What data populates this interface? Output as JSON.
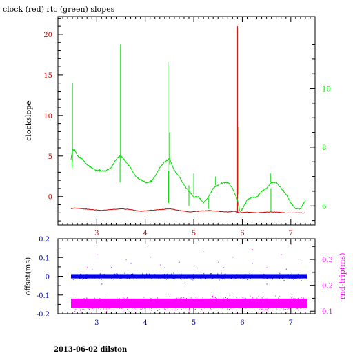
{
  "title": "clock (red) rtc (green) slopes",
  "footer": "2013-06-02 dilston",
  "colors": {
    "clock": "#cc0000",
    "rtc": "#00dd00",
    "offset": "#0000ee",
    "rtt": "#ff00ff",
    "frame": "#000000",
    "bottom_axis": "#0000cc"
  },
  "chart_data": [
    {
      "type": "line",
      "title": "clock (red) rtc (green) slopes",
      "xlabel": "",
      "ylabel": "clockslope",
      "y2label": "",
      "xlim": [
        2.2,
        7.5
      ],
      "ylim": [
        -3.5,
        22.2
      ],
      "y2lim": [
        5.35,
        12.45
      ],
      "xticks": [
        "3",
        "4",
        "5",
        "6",
        "7"
      ],
      "yticks": [
        "0",
        "5",
        "10",
        "15",
        "20"
      ],
      "y2ticks": [
        "6",
        "8",
        "10"
      ],
      "grid": false,
      "series": [
        {
          "name": "clock",
          "axis": "left",
          "color": "#cc0000",
          "x": [
            2.47,
            2.55,
            2.7,
            2.9,
            3.1,
            3.3,
            3.5,
            3.7,
            3.9,
            4.1,
            4.3,
            4.5,
            4.7,
            4.9,
            5.1,
            5.3,
            5.5,
            5.7,
            5.85,
            5.95,
            6.1,
            6.3,
            6.5,
            6.7,
            6.9,
            7.1,
            7.3
          ],
          "y": [
            -1.5,
            -1.4,
            -1.5,
            -1.6,
            -1.7,
            -1.6,
            -1.5,
            -1.6,
            -1.8,
            -1.7,
            -1.6,
            -1.5,
            -1.7,
            -1.9,
            -1.8,
            -1.7,
            -1.8,
            -1.9,
            -1.8,
            -2.0,
            -1.9,
            -2.0,
            -1.9,
            -1.9,
            -2.0,
            -2.0,
            -2.0
          ],
          "spikes": [
            {
              "x": 5.9,
              "to": 21.0
            }
          ]
        },
        {
          "name": "rtc",
          "axis": "right",
          "color": "#00dd00",
          "x": [
            2.47,
            2.5,
            2.55,
            2.6,
            2.7,
            2.8,
            2.9,
            3.0,
            3.1,
            3.2,
            3.3,
            3.4,
            3.5,
            3.6,
            3.7,
            3.8,
            3.9,
            4.0,
            4.1,
            4.2,
            4.3,
            4.4,
            4.5,
            4.6,
            4.7,
            4.8,
            4.9,
            5.0,
            5.1,
            5.2,
            5.3,
            5.4,
            5.5,
            5.6,
            5.7,
            5.8,
            5.9,
            5.95,
            6.0,
            6.1,
            6.2,
            6.3,
            6.4,
            6.5,
            6.6,
            6.7,
            6.8,
            6.9,
            7.0,
            7.1,
            7.2,
            7.3
          ],
          "y": [
            7.6,
            7.9,
            7.9,
            7.7,
            7.6,
            7.4,
            7.3,
            7.2,
            7.2,
            7.2,
            7.3,
            7.6,
            7.7,
            7.5,
            7.3,
            7.0,
            6.9,
            6.8,
            6.8,
            7.0,
            7.3,
            7.5,
            7.6,
            7.2,
            7.0,
            6.7,
            6.5,
            6.3,
            6.3,
            6.1,
            6.3,
            6.6,
            6.7,
            6.8,
            6.8,
            6.6,
            6.2,
            5.8,
            5.9,
            6.2,
            6.3,
            6.3,
            6.5,
            6.6,
            6.8,
            6.8,
            6.6,
            6.4,
            6.1,
            5.9,
            5.9,
            6.2
          ],
          "spikes": [
            {
              "x": 2.5,
              "from": 7.5,
              "to": 10.2
            },
            {
              "x": 2.49,
              "from": 7.6,
              "to": 7.3
            },
            {
              "x": 3.49,
              "from": 7.5,
              "to": 11.5
            },
            {
              "x": 3.48,
              "from": 7.5,
              "to": 6.8
            },
            {
              "x": 4.47,
              "from": 7.2,
              "to": 10.9
            },
            {
              "x": 4.48,
              "from": 7.2,
              "to": 6.1
            },
            {
              "x": 4.5,
              "from": 7.4,
              "to": 8.5
            },
            {
              "x": 4.9,
              "from": 6.7,
              "to": 6.0
            },
            {
              "x": 5.0,
              "from": 6.4,
              "to": 7.1
            },
            {
              "x": 5.3,
              "from": 6.3,
              "to": 5.9
            },
            {
              "x": 5.45,
              "from": 6.7,
              "to": 7.0
            },
            {
              "x": 5.92,
              "from": 6.4,
              "to": 8.7
            },
            {
              "x": 6.58,
              "from": 6.8,
              "to": 7.1
            },
            {
              "x": 6.59,
              "from": 6.6,
              "to": 5.8
            }
          ]
        }
      ]
    },
    {
      "type": "scatter",
      "title": "",
      "xlabel": "",
      "ylabel": "offset(ms)",
      "y2label": "rnd-trip(ms)",
      "xlim": [
        2.2,
        7.5
      ],
      "ylim": [
        -0.2,
        0.2
      ],
      "y2lim": [
        0.09,
        0.38
      ],
      "xticks": [
        "3",
        "4",
        "5",
        "6",
        "7"
      ],
      "yticks": [
        "-0.2",
        "-0.1",
        "0",
        "0.1",
        "0.2"
      ],
      "y2ticks": [
        "0.1",
        "0.2",
        "0.3"
      ],
      "grid": false,
      "series": [
        {
          "name": "offset",
          "axis": "left",
          "color": "#0000ee",
          "x_range": [
            2.47,
            7.33
          ],
          "center": 0.0,
          "spread": 0.015,
          "outliers": [
            [
              2.9,
              0.04
            ],
            [
              3.3,
              0.05
            ],
            [
              3.7,
              0.07
            ],
            [
              4.4,
              0.05
            ],
            [
              5.0,
              0.06
            ],
            [
              5.6,
              0.05
            ],
            [
              6.2,
              0.07
            ],
            [
              6.9,
              0.04
            ],
            [
              3.1,
              -0.04
            ],
            [
              4.8,
              -0.05
            ],
            [
              6.5,
              -0.04
            ]
          ]
        },
        {
          "name": "rnd-trip",
          "axis": "right",
          "color": "#ff00ff",
          "x_range": [
            2.47,
            7.33
          ],
          "center": 0.13,
          "spread": 0.025,
          "outliers": [
            [
              3.2,
              0.37
            ],
            [
              3.0,
              0.32
            ],
            [
              3.6,
              0.3
            ],
            [
              4.1,
              0.31
            ],
            [
              4.3,
              0.28
            ],
            [
              5.2,
              0.33
            ],
            [
              5.5,
              0.29
            ],
            [
              5.8,
              0.31
            ],
            [
              6.2,
              0.34
            ],
            [
              6.5,
              0.27
            ],
            [
              6.8,
              0.32
            ],
            [
              7.0,
              0.36
            ],
            [
              7.2,
              0.3
            ],
            [
              4.7,
              0.29
            ],
            [
              2.8,
              0.27
            ]
          ]
        }
      ]
    }
  ]
}
